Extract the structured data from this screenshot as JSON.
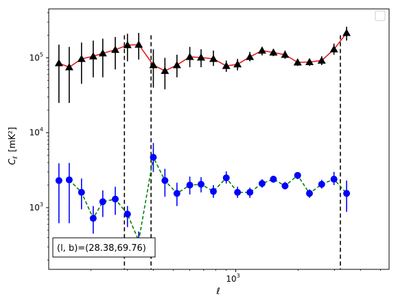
{
  "chart_data": {
    "type": "scatter",
    "title": "",
    "xlabel": "ℓ",
    "ylabel_main": "C",
    "ylabel_sub": "ℓ",
    "ylabel_unit": "[mK²]",
    "xscale": "log",
    "yscale": "log",
    "xlim": [
      125,
      5500
    ],
    "ylim": [
      150,
      450000
    ],
    "grid": false,
    "x_ticks": [
      {
        "value": 1000,
        "base": "10",
        "exp": "3"
      }
    ],
    "y_ticks": [
      {
        "value": 1000,
        "base": "10",
        "exp": "3"
      },
      {
        "value": 10000,
        "base": "10",
        "exp": "4"
      },
      {
        "value": 100000,
        "base": "10",
        "exp": "5"
      }
    ],
    "vlines": [
      290,
      390,
      3200
    ],
    "annotation": "(l, b)=(28.38,69.76)",
    "legend": {
      "placement": "top-right",
      "entries": []
    },
    "series": [
      {
        "marker": "triangle",
        "marker_color": "#000000",
        "errorbar_color": "#000000",
        "line_color": "#e41a1c",
        "line_style": "solid",
        "points": [
          {
            "x": 140,
            "y": 85000,
            "lo": 25000,
            "hi": 150000
          },
          {
            "x": 157,
            "y": 75000,
            "lo": 25000,
            "hi": 140000
          },
          {
            "x": 180,
            "y": 97000,
            "lo": 45000,
            "hi": 160000
          },
          {
            "x": 205,
            "y": 105000,
            "lo": 55000,
            "hi": 170000
          },
          {
            "x": 228,
            "y": 115000,
            "lo": 55000,
            "hi": 180000
          },
          {
            "x": 262,
            "y": 128000,
            "lo": 70000,
            "hi": 190000
          },
          {
            "x": 300,
            "y": 148000,
            "lo": 90000,
            "hi": 210000
          },
          {
            "x": 340,
            "y": 150000,
            "lo": 95000,
            "hi": 215000
          },
          {
            "x": 400,
            "y": 80000,
            "lo": 40000,
            "hi": 130000
          },
          {
            "x": 455,
            "y": 67000,
            "lo": 38000,
            "hi": 100000
          },
          {
            "x": 520,
            "y": 80000,
            "lo": 55000,
            "hi": 110000
          },
          {
            "x": 600,
            "y": 103000,
            "lo": 75000,
            "hi": 140000
          },
          {
            "x": 680,
            "y": 101000,
            "lo": 75000,
            "hi": 130000
          },
          {
            "x": 780,
            "y": 97000,
            "lo": 78000,
            "hi": 125000
          },
          {
            "x": 900,
            "y": 78000,
            "lo": 65000,
            "hi": 92000
          },
          {
            "x": 1020,
            "y": 82000,
            "lo": 68000,
            "hi": 97000
          },
          {
            "x": 1170,
            "y": 103000,
            "lo": 90000,
            "hi": 120000
          },
          {
            "x": 1340,
            "y": 125000,
            "lo": 108000,
            "hi": 140000
          },
          {
            "x": 1520,
            "y": 118000,
            "lo": 105000,
            "hi": 130000
          },
          {
            "x": 1730,
            "y": 110000,
            "lo": 97000,
            "hi": 125000
          },
          {
            "x": 1990,
            "y": 87000,
            "lo": 78000,
            "hi": 97000
          },
          {
            "x": 2270,
            "y": 88000,
            "lo": 78000,
            "hi": 97000
          },
          {
            "x": 2600,
            "y": 92000,
            "lo": 80000,
            "hi": 105000
          },
          {
            "x": 2980,
            "y": 130000,
            "lo": 110000,
            "hi": 155000
          },
          {
            "x": 3430,
            "y": 215000,
            "lo": 170000,
            "hi": 260000
          }
        ],
        "curve": [
          [
            140,
            85000
          ],
          [
            157,
            75000
          ],
          [
            180,
            97000
          ],
          [
            205,
            105000
          ],
          [
            228,
            115000
          ],
          [
            262,
            128000
          ],
          [
            300,
            148000
          ],
          [
            340,
            150000
          ],
          [
            400,
            80000
          ],
          [
            455,
            67000
          ],
          [
            520,
            80000
          ],
          [
            600,
            103000
          ],
          [
            680,
            101000
          ],
          [
            780,
            97000
          ],
          [
            900,
            78000
          ],
          [
            1020,
            82000
          ],
          [
            1170,
            103000
          ],
          [
            1340,
            125000
          ],
          [
            1520,
            118000
          ],
          [
            1730,
            110000
          ],
          [
            1990,
            87000
          ],
          [
            2270,
            88000
          ],
          [
            2600,
            92000
          ],
          [
            2980,
            130000
          ],
          [
            3430,
            215000
          ]
        ]
      },
      {
        "marker": "circle",
        "marker_color": "#0000ff",
        "errorbar_color": "#0000ff",
        "line_color": "#008000",
        "line_style": "dashed",
        "points": [
          {
            "x": 140,
            "y": 2300,
            "lo": 620,
            "hi": 3900
          },
          {
            "x": 157,
            "y": 2350,
            "lo": 620,
            "hi": 3950
          },
          {
            "x": 180,
            "y": 1600,
            "lo": 950,
            "hi": 2450
          },
          {
            "x": 205,
            "y": 720,
            "lo": 450,
            "hi": 1050
          },
          {
            "x": 228,
            "y": 1200,
            "lo": 750,
            "hi": 1700
          },
          {
            "x": 262,
            "y": 1300,
            "lo": 800,
            "hi": 1900
          },
          {
            "x": 300,
            "y": 820,
            "lo": 550,
            "hi": 1050
          },
          {
            "x": 340,
            "y": 360,
            "lo": 250,
            "hi": 480
          },
          {
            "x": 400,
            "y": 4700,
            "lo": 3000,
            "hi": 7300
          },
          {
            "x": 455,
            "y": 2300,
            "lo": 1400,
            "hi": 3300
          },
          {
            "x": 520,
            "y": 1550,
            "lo": 1050,
            "hi": 2150
          },
          {
            "x": 600,
            "y": 2000,
            "lo": 1500,
            "hi": 2600
          },
          {
            "x": 680,
            "y": 2050,
            "lo": 1600,
            "hi": 2550
          },
          {
            "x": 780,
            "y": 1650,
            "lo": 1350,
            "hi": 2000
          },
          {
            "x": 900,
            "y": 2500,
            "lo": 2100,
            "hi": 3050
          },
          {
            "x": 1020,
            "y": 1600,
            "lo": 1350,
            "hi": 1900
          },
          {
            "x": 1170,
            "y": 1600,
            "lo": 1350,
            "hi": 1850
          },
          {
            "x": 1340,
            "y": 2100,
            "lo": 1850,
            "hi": 2400
          },
          {
            "x": 1520,
            "y": 2400,
            "lo": 2150,
            "hi": 2650
          },
          {
            "x": 1730,
            "y": 1950,
            "lo": 1750,
            "hi": 2200
          },
          {
            "x": 1990,
            "y": 2700,
            "lo": 2400,
            "hi": 2950
          },
          {
            "x": 2270,
            "y": 1550,
            "lo": 1350,
            "hi": 1750
          },
          {
            "x": 2600,
            "y": 2050,
            "lo": 1800,
            "hi": 2350
          },
          {
            "x": 2980,
            "y": 2400,
            "lo": 2000,
            "hi": 3000
          },
          {
            "x": 3430,
            "y": 1550,
            "lo": 880,
            "hi": 2300
          }
        ],
        "curve": [
          [
            157,
            2350
          ],
          [
            180,
            1600
          ],
          [
            205,
            720
          ],
          [
            228,
            1200
          ],
          [
            262,
            1300
          ],
          [
            300,
            820
          ],
          [
            340,
            360
          ],
          [
            400,
            4700
          ],
          [
            455,
            2300
          ],
          [
            520,
            1550
          ],
          [
            600,
            2000
          ],
          [
            680,
            2050
          ],
          [
            780,
            1650
          ],
          [
            900,
            2500
          ],
          [
            1020,
            1600
          ],
          [
            1170,
            1600
          ],
          [
            1340,
            2100
          ],
          [
            1520,
            2400
          ],
          [
            1730,
            1950
          ],
          [
            1990,
            2700
          ],
          [
            2270,
            1550
          ],
          [
            2600,
            2050
          ],
          [
            2980,
            2400
          ],
          [
            3430,
            1550
          ]
        ]
      }
    ]
  }
}
